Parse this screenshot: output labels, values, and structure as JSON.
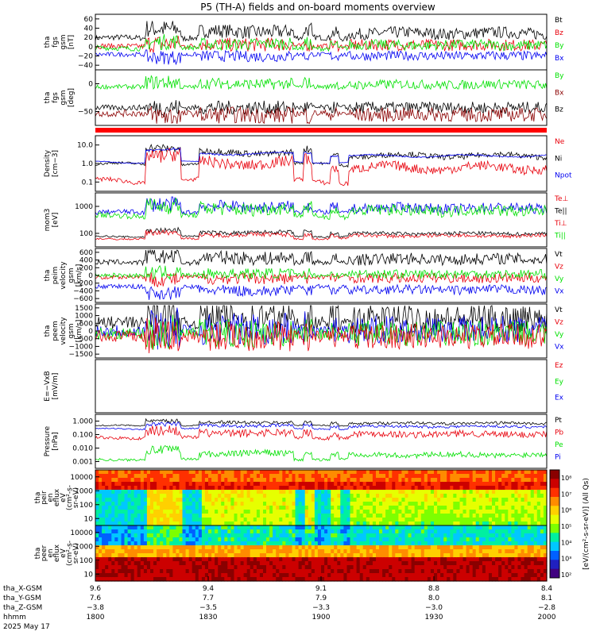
{
  "title": "P5 (TH-A) fields and on-board moments overview",
  "colors": {
    "black": "#000000",
    "red": "#e8000b",
    "green": "#00e000",
    "blue": "#0000f0",
    "darkred": "#8b0000",
    "nav": "#ff0000"
  },
  "panels": [
    {
      "labels": [
        "tha",
        "fgs",
        "gsm",
        "[nT]"
      ],
      "yticks": [
        "60",
        "40",
        "20",
        "0",
        "−20",
        "−40"
      ],
      "legend": [
        {
          "text": "Bt",
          "color": "black"
        },
        {
          "text": "Bz",
          "color": "red"
        },
        {
          "text": "By",
          "color": "green"
        },
        {
          "text": "Bx",
          "color": "blue"
        }
      ]
    },
    {
      "labels": [
        "tha",
        "fgs",
        "gsm",
        "[deg]"
      ],
      "yticks": [
        "0",
        "−50"
      ],
      "legend": [
        {
          "text": "By",
          "color": "green"
        },
        {
          "text": "Bx",
          "color": "darkred"
        },
        {
          "text": "Bz",
          "color": "black"
        }
      ]
    },
    {
      "labels": [],
      "yticks": [],
      "legend": []
    },
    {
      "labels": [
        "Density",
        "[cm−3]"
      ],
      "yticks": [
        "10.0",
        "1.0",
        "0.1"
      ],
      "legend": [
        {
          "text": "Ne",
          "color": "red"
        },
        {
          "text": "Ni",
          "color": "black"
        },
        {
          "text": "Npot",
          "color": "blue"
        }
      ]
    },
    {
      "labels": [
        "mom3",
        "[eV]"
      ],
      "yticks": [
        "1000",
        "100"
      ],
      "legend": [
        {
          "text": "Te⊥",
          "color": "red"
        },
        {
          "text": "Te||",
          "color": "black"
        },
        {
          "text": "Ti⊥",
          "color": "red"
        },
        {
          "text": "Ti||",
          "color": "green"
        }
      ]
    },
    {
      "labels": [
        "tha",
        "peim",
        "velocity",
        "gsm",
        "[km/s]"
      ],
      "yticks": [
        "600",
        "400",
        "200",
        "0",
        "−200",
        "−400",
        "−600"
      ],
      "legend": [
        {
          "text": "Vt",
          "color": "black"
        },
        {
          "text": "Vz",
          "color": "red"
        },
        {
          "text": "Vy",
          "color": "green"
        },
        {
          "text": "Vx",
          "color": "blue"
        }
      ]
    },
    {
      "labels": [
        "tha",
        "peem",
        "velocity",
        "gsm",
        "[km/s]"
      ],
      "yticks": [
        "1500",
        "1000",
        "500",
        "0",
        "−500",
        "−1000",
        "−1500"
      ],
      "legend": [
        {
          "text": "Vt",
          "color": "black"
        },
        {
          "text": "Vz",
          "color": "red"
        },
        {
          "text": "Vy",
          "color": "green"
        },
        {
          "text": "Vx",
          "color": "blue"
        }
      ]
    },
    {
      "labels": [
        "E=−VxB",
        "[mV/m]"
      ],
      "yticks": [],
      "legend": [
        {
          "text": "Ez",
          "color": "red"
        },
        {
          "text": "Ey",
          "color": "green"
        },
        {
          "text": "Ex",
          "color": "blue"
        }
      ]
    },
    {
      "labels": [
        "Pressure",
        "[nPa]"
      ],
      "yticks": [
        "1.000",
        "0.100",
        "0.010",
        "0.001"
      ],
      "legend": [
        {
          "text": "Pt",
          "color": "black"
        },
        {
          "text": "Pb",
          "color": "red"
        },
        {
          "text": "Pe",
          "color": "green"
        },
        {
          "text": "Pi",
          "color": "blue"
        }
      ]
    },
    {
      "labels": [
        "tha",
        "peir",
        "en",
        "eflux",
        "eV",
        "(cm²-s-",
        "sr-eV)"
      ],
      "yticks": [
        "10000",
        "1000",
        "100",
        "10"
      ],
      "legend": []
    },
    {
      "labels": [
        "tha",
        "peer",
        "en",
        "eflux",
        "eV",
        "(cm²-s-",
        "sr-eV)"
      ],
      "yticks": [
        "10000",
        "1000",
        "100",
        "10"
      ],
      "legend": []
    }
  ],
  "colorbar": {
    "ticks": [
      "10⁸",
      "10⁷",
      "10⁶",
      "10⁵",
      "10⁴",
      "10³",
      "10²"
    ],
    "label": "[eV/(cm²-s-sr-eV)] (All Qs)"
  },
  "xaxis": {
    "row_labels": [
      "tha_X-GSM",
      "tha_Y-GSM",
      "tha_Z-GSM",
      "hhmm",
      "2025 May 17"
    ],
    "ticks": [
      {
        "lines": [
          "9.6",
          "7.6",
          "−3.8",
          "1800"
        ]
      },
      {
        "lines": [
          "9.4",
          "7.7",
          "−3.5",
          "1830"
        ]
      },
      {
        "lines": [
          "9.1",
          "7.9",
          "−3.3",
          "1900"
        ]
      },
      {
        "lines": [
          "8.8",
          "8.0",
          "−3.0",
          "1930"
        ]
      },
      {
        "lines": [
          "8.4",
          "8.1",
          "−2.8",
          "2000"
        ]
      }
    ]
  },
  "chart_data": {
    "type": "line",
    "x_range": [
      "1800",
      "2000"
    ],
    "series": [
      {
        "panel": "fgs gsm",
        "name": "Bt",
        "range": [
          0,
          60
        ]
      },
      {
        "panel": "fgs gsm",
        "name": "Bz",
        "range": [
          -40,
          40
        ]
      },
      {
        "panel": "fgs gsm",
        "name": "By",
        "range": [
          -20,
          40
        ]
      },
      {
        "panel": "fgs gsm",
        "name": "Bx",
        "range": [
          -40,
          0
        ]
      },
      {
        "panel": "Density",
        "name": "Ne",
        "scale": "log"
      },
      {
        "panel": "Density",
        "name": "Ni",
        "scale": "log"
      },
      {
        "panel": "Pressure",
        "name": "Pt",
        "scale": "log"
      }
    ]
  }
}
